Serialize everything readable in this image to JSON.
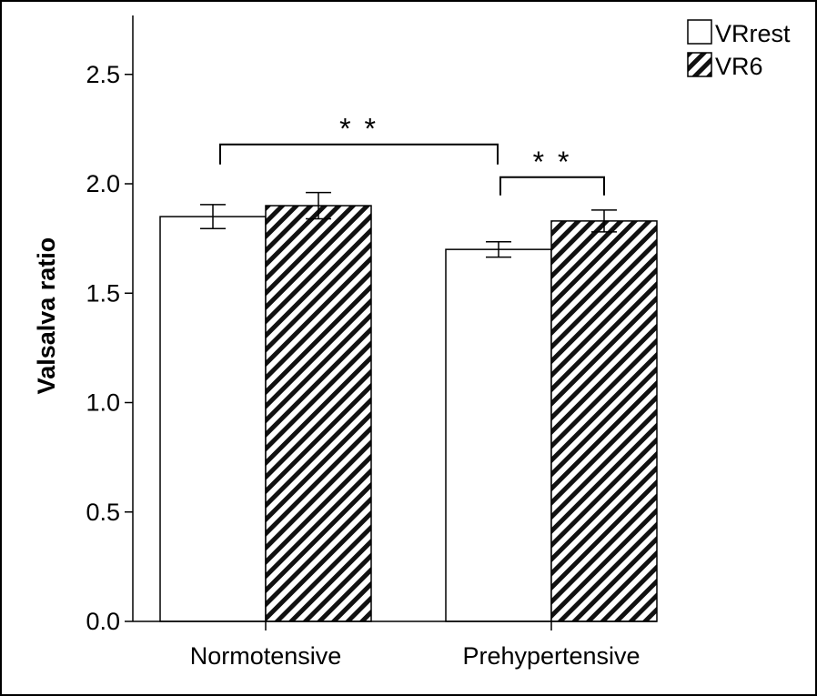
{
  "chart_data": {
    "type": "bar",
    "title": "",
    "xlabel": "",
    "ylabel": "Valsalva ratio",
    "ylim": [
      0,
      2.75
    ],
    "yticks": [
      "0.0",
      "0.5",
      "1.0",
      "1.5",
      "2.0",
      "2.5"
    ],
    "ytick_values": [
      0,
      0.5,
      1.0,
      1.5,
      2.0,
      2.5
    ],
    "categories": [
      "Normotensive",
      "Prehypertensive"
    ],
    "series": [
      {
        "name": "VRrest",
        "fill": "white",
        "values": [
          1.85,
          1.7
        ],
        "errors": [
          0.055,
          0.035
        ]
      },
      {
        "name": "VR6",
        "fill": "hatched",
        "values": [
          1.9,
          1.83
        ],
        "errors": [
          0.06,
          0.05
        ]
      }
    ],
    "annotations": [
      {
        "text": "* *",
        "from": {
          "category": 0,
          "series": 0
        },
        "to": {
          "category": 1,
          "series": 0
        },
        "y": 2.18
      },
      {
        "text": "* *",
        "from": {
          "category": 1,
          "series": 0
        },
        "to": {
          "category": 1,
          "series": 1
        },
        "y": 2.03
      }
    ],
    "legend": {
      "position": "top-right"
    },
    "grid": false,
    "colors": {
      "bar_edge": "#000000",
      "hatch": "#000000",
      "background": "#ffffff"
    }
  }
}
